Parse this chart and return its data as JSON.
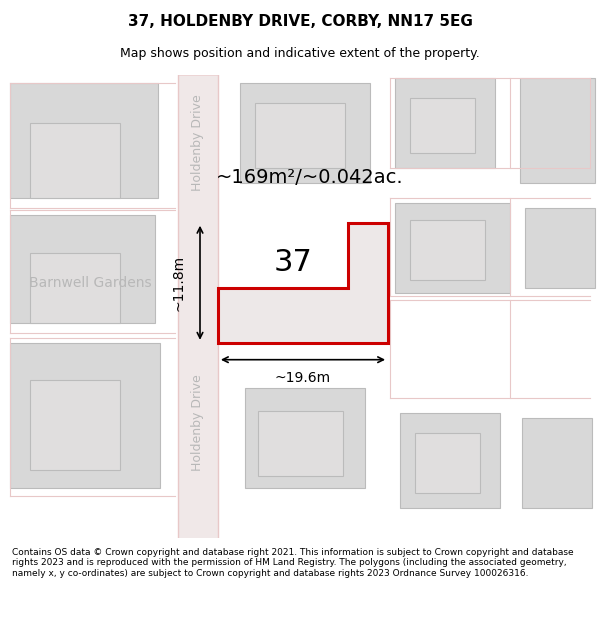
{
  "title": "37, HOLDENBY DRIVE, CORBY, NN17 5EG",
  "subtitle": "Map shows position and indicative extent of the property.",
  "footer": "Contains OS data © Crown copyright and database right 2021. This information is subject to Crown copyright and database rights 2023 and is reproduced with the permission of HM Land Registry. The polygons (including the associated geometry, namely x, y co-ordinates) are subject to Crown copyright and database rights 2023 Ordnance Survey 100026316.",
  "bg_color": "#f0eeee",
  "map_bg": "#f5f3f3",
  "building_fill": "#d8d8d8",
  "building_edge": "#c0c0c0",
  "road_outline_color": "#e8c8c8",
  "highlight_color": "#cc0000",
  "highlight_fill": "#e8d8d8",
  "street_label_color": "#b0b0b0",
  "area_label": "~169m²/~0.042ac.",
  "number_label": "37",
  "width_label": "~19.6m",
  "height_label": "~11.8m",
  "street_name": "Holdenby Drive",
  "district_name": "Barnwell Gardens"
}
